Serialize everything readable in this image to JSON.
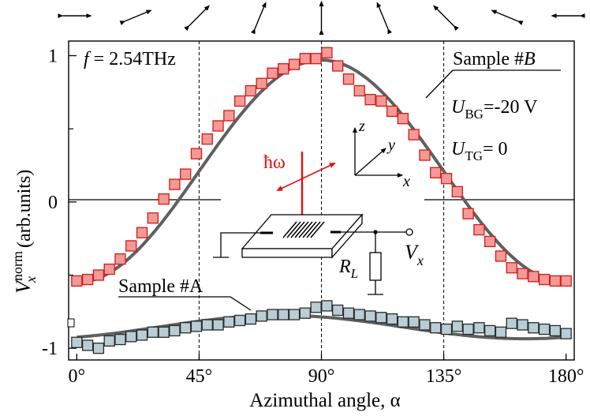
{
  "chart_data": {
    "type": "scatter",
    "title": "",
    "xlabel": "Azimuthal angle, α",
    "ylabel": {
      "main": "V",
      "sub": "x",
      "sup": "norm",
      "unit": "(arb.units)"
    },
    "xlim": [
      -3,
      183
    ],
    "ylim": [
      -1.08,
      1.1
    ],
    "xticks": [
      {
        "value": 0,
        "label": "0°"
      },
      {
        "value": 45,
        "label": "45°"
      },
      {
        "value": 90,
        "label": "90°"
      },
      {
        "value": 135,
        "label": "135°"
      },
      {
        "value": 180,
        "label": "180°"
      }
    ],
    "yticks": [
      {
        "value": 1,
        "label": "1"
      },
      {
        "value": 0,
        "label": "0"
      },
      {
        "value": -1,
        "label": "-1"
      }
    ],
    "vlines": [
      45,
      90,
      135
    ],
    "polarization_angles": [
      0,
      22.5,
      45,
      67.5,
      90,
      112.5,
      135,
      157.5,
      180
    ],
    "annotations": {
      "frequency": {
        "f": "f",
        "eq": " = 2.54THz"
      },
      "sample_b": {
        "text": "Sample #",
        "italic": "B"
      },
      "sample_a": "Sample #A",
      "ubg": {
        "main": "U",
        "sub": "BG",
        "value": "=-20 V"
      },
      "utg": {
        "main": "U",
        "sub": "TG",
        "value": "= 0"
      },
      "hbar_omega": "ħω",
      "axis_x": "x",
      "axis_y": "y",
      "axis_z": "z",
      "rl": {
        "main": "R",
        "sub": "L"
      },
      "vx": {
        "main": "V",
        "sub": "x"
      }
    },
    "series": [
      {
        "name": "Sample #B",
        "marker": "square",
        "fill": "#f29a98",
        "edge": "#d21a16",
        "x": [
          0,
          4,
          8,
          12,
          16,
          20,
          24,
          28,
          32,
          36,
          40,
          44,
          48,
          52,
          56,
          60,
          64,
          68,
          72,
          76,
          80,
          84,
          88,
          92,
          96,
          100,
          104,
          108,
          112,
          116,
          120,
          124,
          128,
          132,
          136,
          140,
          144,
          148,
          152,
          156,
          160,
          164,
          168,
          172,
          176,
          180
        ],
        "y": [
          -0.54,
          -0.53,
          -0.5,
          -0.46,
          -0.39,
          -0.3,
          -0.21,
          -0.11,
          0.02,
          0.12,
          0.19,
          0.33,
          0.43,
          0.52,
          0.59,
          0.69,
          0.76,
          0.81,
          0.88,
          0.91,
          0.94,
          0.98,
          0.98,
          1.02,
          0.93,
          0.84,
          0.76,
          0.7,
          0.69,
          0.62,
          0.57,
          0.46,
          0.32,
          0.2,
          0.16,
          0.07,
          -0.08,
          -0.19,
          -0.27,
          -0.37,
          -0.45,
          -0.49,
          -0.51,
          -0.53,
          -0.54,
          -0.54
        ]
      },
      {
        "name": "Sample #A",
        "marker": "square",
        "fill": "#b8cdd5",
        "edge": "#2a2a2a",
        "x": [
          0,
          4,
          8,
          12,
          16,
          20,
          24,
          28,
          32,
          36,
          40,
          44,
          48,
          52,
          56,
          60,
          64,
          68,
          72,
          76,
          80,
          84,
          88,
          92,
          96,
          100,
          104,
          108,
          112,
          116,
          120,
          124,
          128,
          132,
          136,
          140,
          144,
          148,
          152,
          156,
          160,
          164,
          168,
          172,
          176,
          180
        ],
        "y": [
          -0.96,
          -0.98,
          -1.0,
          -0.95,
          -0.94,
          -0.92,
          -0.91,
          -0.89,
          -0.89,
          -0.88,
          -0.86,
          -0.85,
          -0.84,
          -0.84,
          -0.82,
          -0.81,
          -0.8,
          -0.78,
          -0.77,
          -0.77,
          -0.77,
          -0.76,
          -0.72,
          -0.71,
          -0.74,
          -0.76,
          -0.77,
          -0.78,
          -0.79,
          -0.8,
          -0.82,
          -0.82,
          -0.84,
          -0.86,
          -0.87,
          -0.85,
          -0.87,
          -0.86,
          -0.88,
          -0.89,
          -0.83,
          -0.84,
          -0.86,
          -0.87,
          -0.88,
          -0.9
        ]
      }
    ],
    "fits": [
      {
        "name": "fit B",
        "color": "#606060",
        "offset": 0.21,
        "amplitude": 0.76,
        "phase": 90
      },
      {
        "name": "fit A",
        "color": "#606060",
        "offset": -0.855,
        "amplitude": 0.08,
        "phase": 75
      }
    ]
  }
}
